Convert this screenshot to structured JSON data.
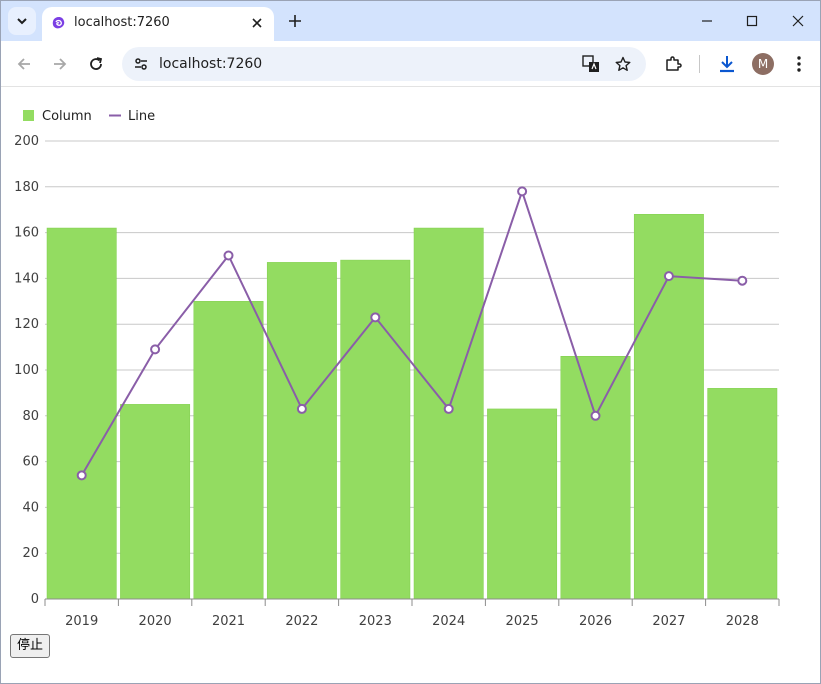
{
  "browser": {
    "tab": {
      "title": "localhost:7260"
    },
    "omnibox": {
      "url": "localhost:7260"
    },
    "profile": {
      "initial": "M"
    },
    "icons": {
      "tab_search": "chevron-down-icon",
      "favicon": "blazor-app-icon",
      "tab_close": "close-icon",
      "new_tab": "plus-icon",
      "minimize": "minimize-icon",
      "maximize": "maximize-icon",
      "close_window": "close-icon",
      "back": "arrow-left-icon",
      "forward": "arrow-right-icon",
      "reload": "reload-icon",
      "site_info": "tune-icon",
      "translate": "translate-icon",
      "bookmark": "star-icon",
      "extensions": "puzzle-icon",
      "downloads": "download-icon",
      "menu": "more-vert-icon"
    },
    "colors": {
      "tabstrip": "#d3e3fd",
      "omnibox": "#edf2fa",
      "download_accent": "#0b57d0"
    }
  },
  "page": {
    "stop_button": {
      "label": "停止"
    }
  },
  "chart_data": {
    "type": "bar",
    "categories": [
      "2019",
      "2020",
      "2021",
      "2022",
      "2023",
      "2024",
      "2025",
      "2026",
      "2027",
      "2028"
    ],
    "series": [
      {
        "name": "Column",
        "type": "bar",
        "color": "#93dc61",
        "values": [
          162,
          85,
          130,
          147,
          148,
          162,
          83,
          106,
          168,
          92
        ]
      },
      {
        "name": "Line",
        "type": "line",
        "color": "#8a5ea8",
        "values": [
          54,
          109,
          150,
          83,
          123,
          83,
          178,
          80,
          141,
          139
        ]
      }
    ],
    "ylim": [
      0,
      200
    ],
    "y_ticks": [
      0,
      20,
      40,
      60,
      80,
      100,
      120,
      140,
      160,
      180,
      200
    ],
    "grid": true,
    "legend_position": "top-left"
  }
}
